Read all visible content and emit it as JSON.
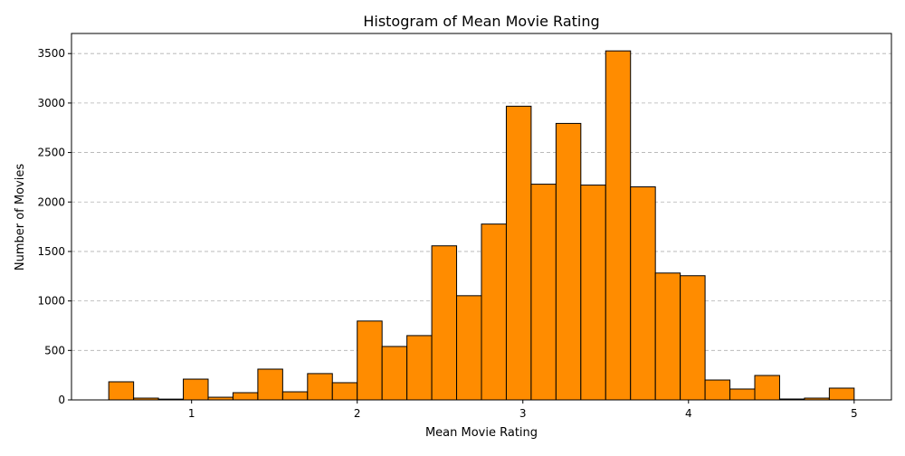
{
  "chart_data": {
    "type": "bar",
    "title": "Histogram of Mean Movie Rating",
    "xlabel": "Mean Movie Rating",
    "ylabel": "Number of Movies",
    "bin_start": 0.5,
    "bin_width": 0.15,
    "values": [
      183,
      18,
      8,
      210,
      27,
      73,
      311,
      82,
      266,
      174,
      797,
      540,
      650,
      1557,
      1053,
      1777,
      2968,
      2180,
      2794,
      2171,
      3527,
      2153,
      1282,
      1255,
      201,
      110,
      247,
      9,
      18,
      119
    ],
    "xlim": [
      0.275,
      5.225
    ],
    "ylim": [
      0,
      3703
    ],
    "xticks": [
      1,
      2,
      3,
      4,
      5
    ],
    "xtick_labels": [
      "1",
      "2",
      "3",
      "4",
      "5"
    ],
    "yticks": [
      0,
      500,
      1000,
      1500,
      2000,
      2500,
      3000,
      3500
    ],
    "ytick_labels": [
      "0",
      "500",
      "1000",
      "1500",
      "2000",
      "2500",
      "3000",
      "3500"
    ],
    "grid": "y-dashed",
    "bar_color": "#ff8c00",
    "edge_color": "#000000"
  }
}
